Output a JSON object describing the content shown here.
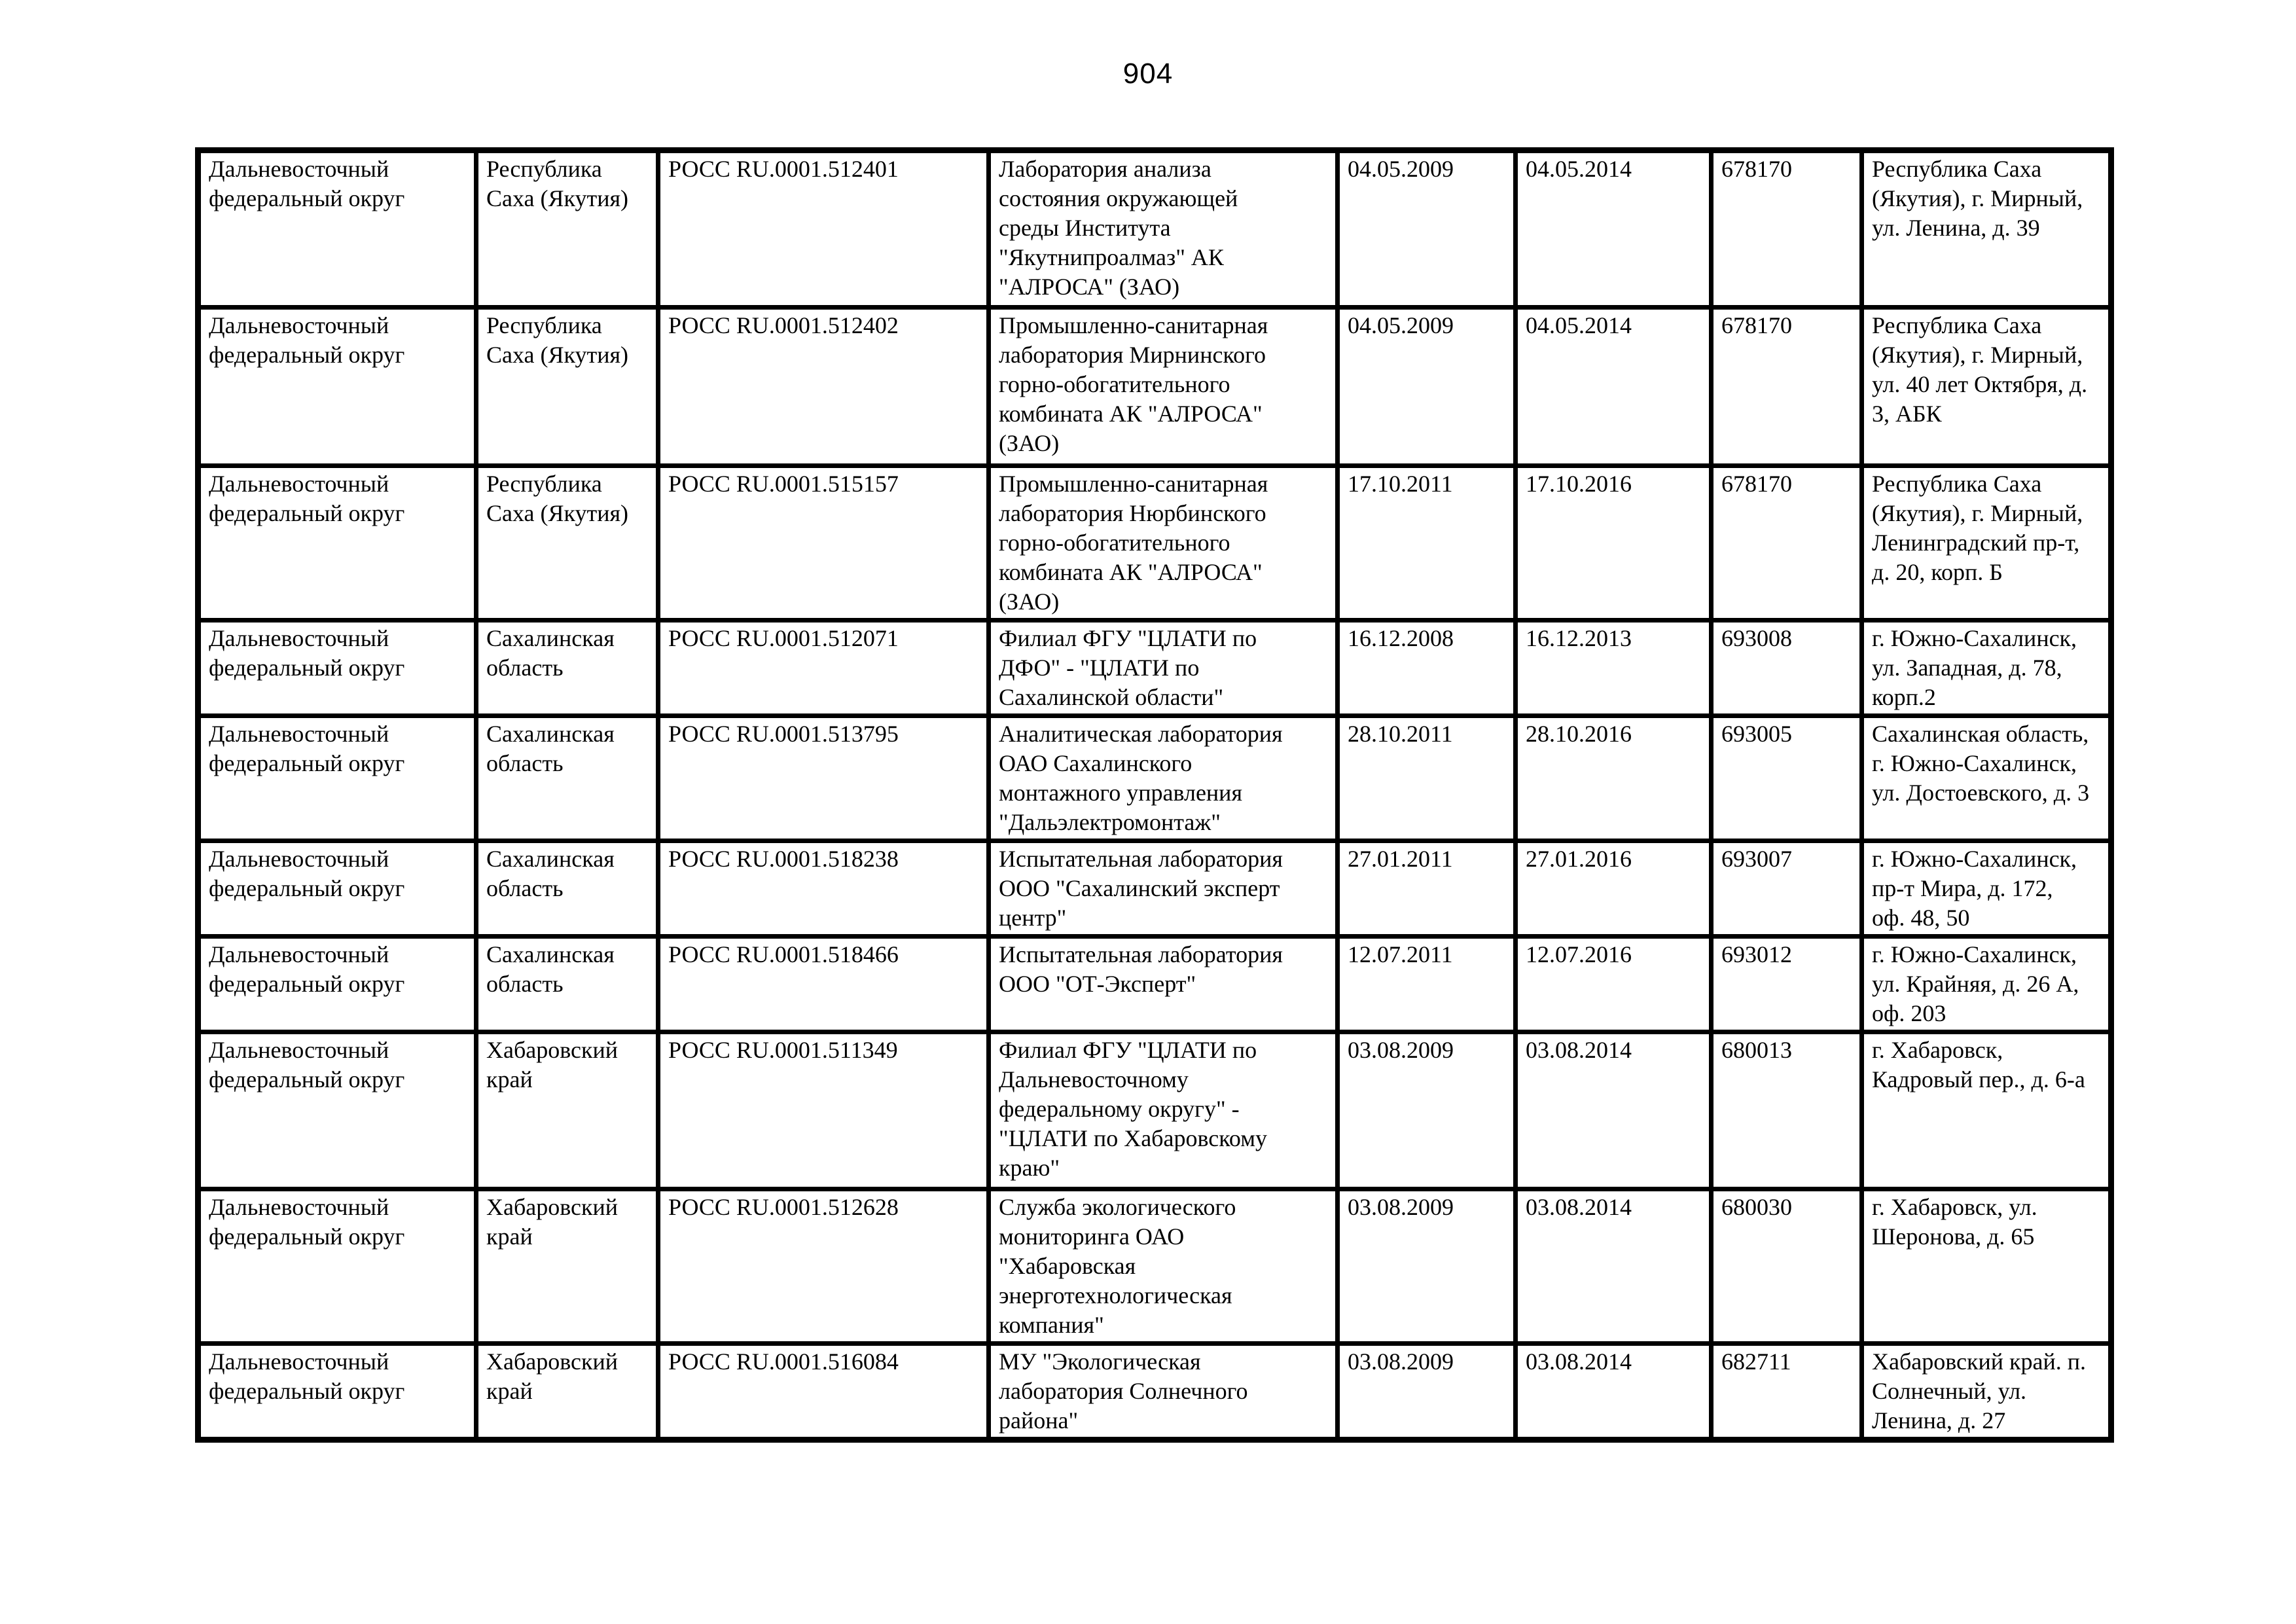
{
  "page": {
    "number": "904"
  },
  "table": {
    "rows": [
      {
        "district": "Дальневосточный федеральный округ",
        "region": "Республика Саха (Якутия)",
        "code": "РОСС RU.0001.512401",
        "laboratory": "Лаборатория анализа состояния окружающей среды Института \"Якутнипроалмаз\" АК \"АЛРОСА\" (ЗАО)",
        "valid_from": "04.05.2009",
        "valid_to": "04.05.2014",
        "postal_code": "678170",
        "address": "Республика Саха (Якутия), г. Мирный, ул. Ленина, д. 39"
      },
      {
        "district": "Дальневосточный федеральный округ",
        "region": "Республика Саха (Якутия)",
        "code": "РОСС RU.0001.512402",
        "laboratory": "Промышленно-санитарная лаборатория Мирнинского горно-обогатительного комбината АК \"АЛРОСА\" (ЗАО)",
        "valid_from": "04.05.2009",
        "valid_to": "04.05.2014",
        "postal_code": "678170",
        "address": "Республика Саха (Якутия), г. Мирный, ул. 40 лет Октября, д. 3, АБК"
      },
      {
        "district": "Дальневосточный федеральный округ",
        "region": "Республика Саха (Якутия)",
        "code": "РОСС RU.0001.515157",
        "laboratory": "Промышленно-санитарная лаборатория Нюрбинского горно-обогатительного комбината АК \"АЛРОСА\" (ЗАО)",
        "valid_from": "17.10.2011",
        "valid_to": "17.10.2016",
        "postal_code": "678170",
        "address": "Республика Саха (Якутия), г. Мирный, Ленинградский пр-т, д. 20, корп. Б"
      },
      {
        "district": "Дальневосточный федеральный округ",
        "region": "Сахалинская область",
        "code": "РОСС RU.0001.512071",
        "laboratory": "Филиал ФГУ \"ЦЛАТИ по ДФО\" - \"ЦЛАТИ по Сахалинской области\"",
        "valid_from": "16.12.2008",
        "valid_to": "16.12.2013",
        "postal_code": "693008",
        "address": "г. Южно-Сахалинск, ул. Западная, д. 78, корп.2"
      },
      {
        "district": "Дальневосточный федеральный округ",
        "region": "Сахалинская область",
        "code": "РОСС RU.0001.513795",
        "laboratory": "Аналитическая лаборатория ОАО Сахалинского монтажного управления \"Дальэлектромонтаж\"",
        "valid_from": "28.10.2011",
        "valid_to": "28.10.2016",
        "postal_code": "693005",
        "address": "Сахалинская область, г. Южно-Сахалинск, ул. Достоевского, д. 3"
      },
      {
        "district": "Дальневосточный федеральный округ",
        "region": "Сахалинская область",
        "code": "РОСС RU.0001.518238",
        "laboratory": "Испытательная лаборатория ООО \"Сахалинский эксперт центр\"",
        "valid_from": "27.01.2011",
        "valid_to": "27.01.2016",
        "postal_code": "693007",
        "address": "г. Южно-Сахалинск, пр-т Мира, д. 172, оф. 48, 50"
      },
      {
        "district": "Дальневосточный федеральный округ",
        "region": "Сахалинская область",
        "code": "РОСС RU.0001.518466",
        "laboratory": "Испытательная лаборатория ООО \"ОТ-Эксперт\"",
        "valid_from": "12.07.2011",
        "valid_to": "12.07.2016",
        "postal_code": "693012",
        "address": "г. Южно-Сахалинск, ул. Крайняя, д. 26 А, оф. 203"
      },
      {
        "district": "Дальневосточный федеральный округ",
        "region": "Хабаровский край",
        "code": "РОСС RU.0001.511349",
        "laboratory": "Филиал ФГУ \"ЦЛАТИ по Дальневосточному федеральному округу\" - \"ЦЛАТИ по Хабаровскому краю\"",
        "valid_from": "03.08.2009",
        "valid_to": "03.08.2014",
        "postal_code": "680013",
        "address": "г. Хабаровск, Кадровый пер., д. 6-а"
      },
      {
        "district": "Дальневосточный федеральный округ",
        "region": "Хабаровский край",
        "code": "РОСС RU.0001.512628",
        "laboratory": "Служба экологического мониторинга ОАО \"Хабаровская энерготехнологическая компания\"",
        "valid_from": "03.08.2009",
        "valid_to": "03.08.2014",
        "postal_code": "680030",
        "address": "г. Хабаровск, ул. Шеронова, д. 65"
      },
      {
        "district": "Дальневосточный федеральный округ",
        "region": "Хабаровский край",
        "code": "РОСС RU.0001.516084",
        "laboratory": "МУ \"Экологическая лаборатория Солнечного района\"",
        "valid_from": "03.08.2009",
        "valid_to": "03.08.2014",
        "postal_code": "682711",
        "address": "Хабаровский край. п. Солнечный, ул. Ленина, д. 27"
      }
    ]
  }
}
